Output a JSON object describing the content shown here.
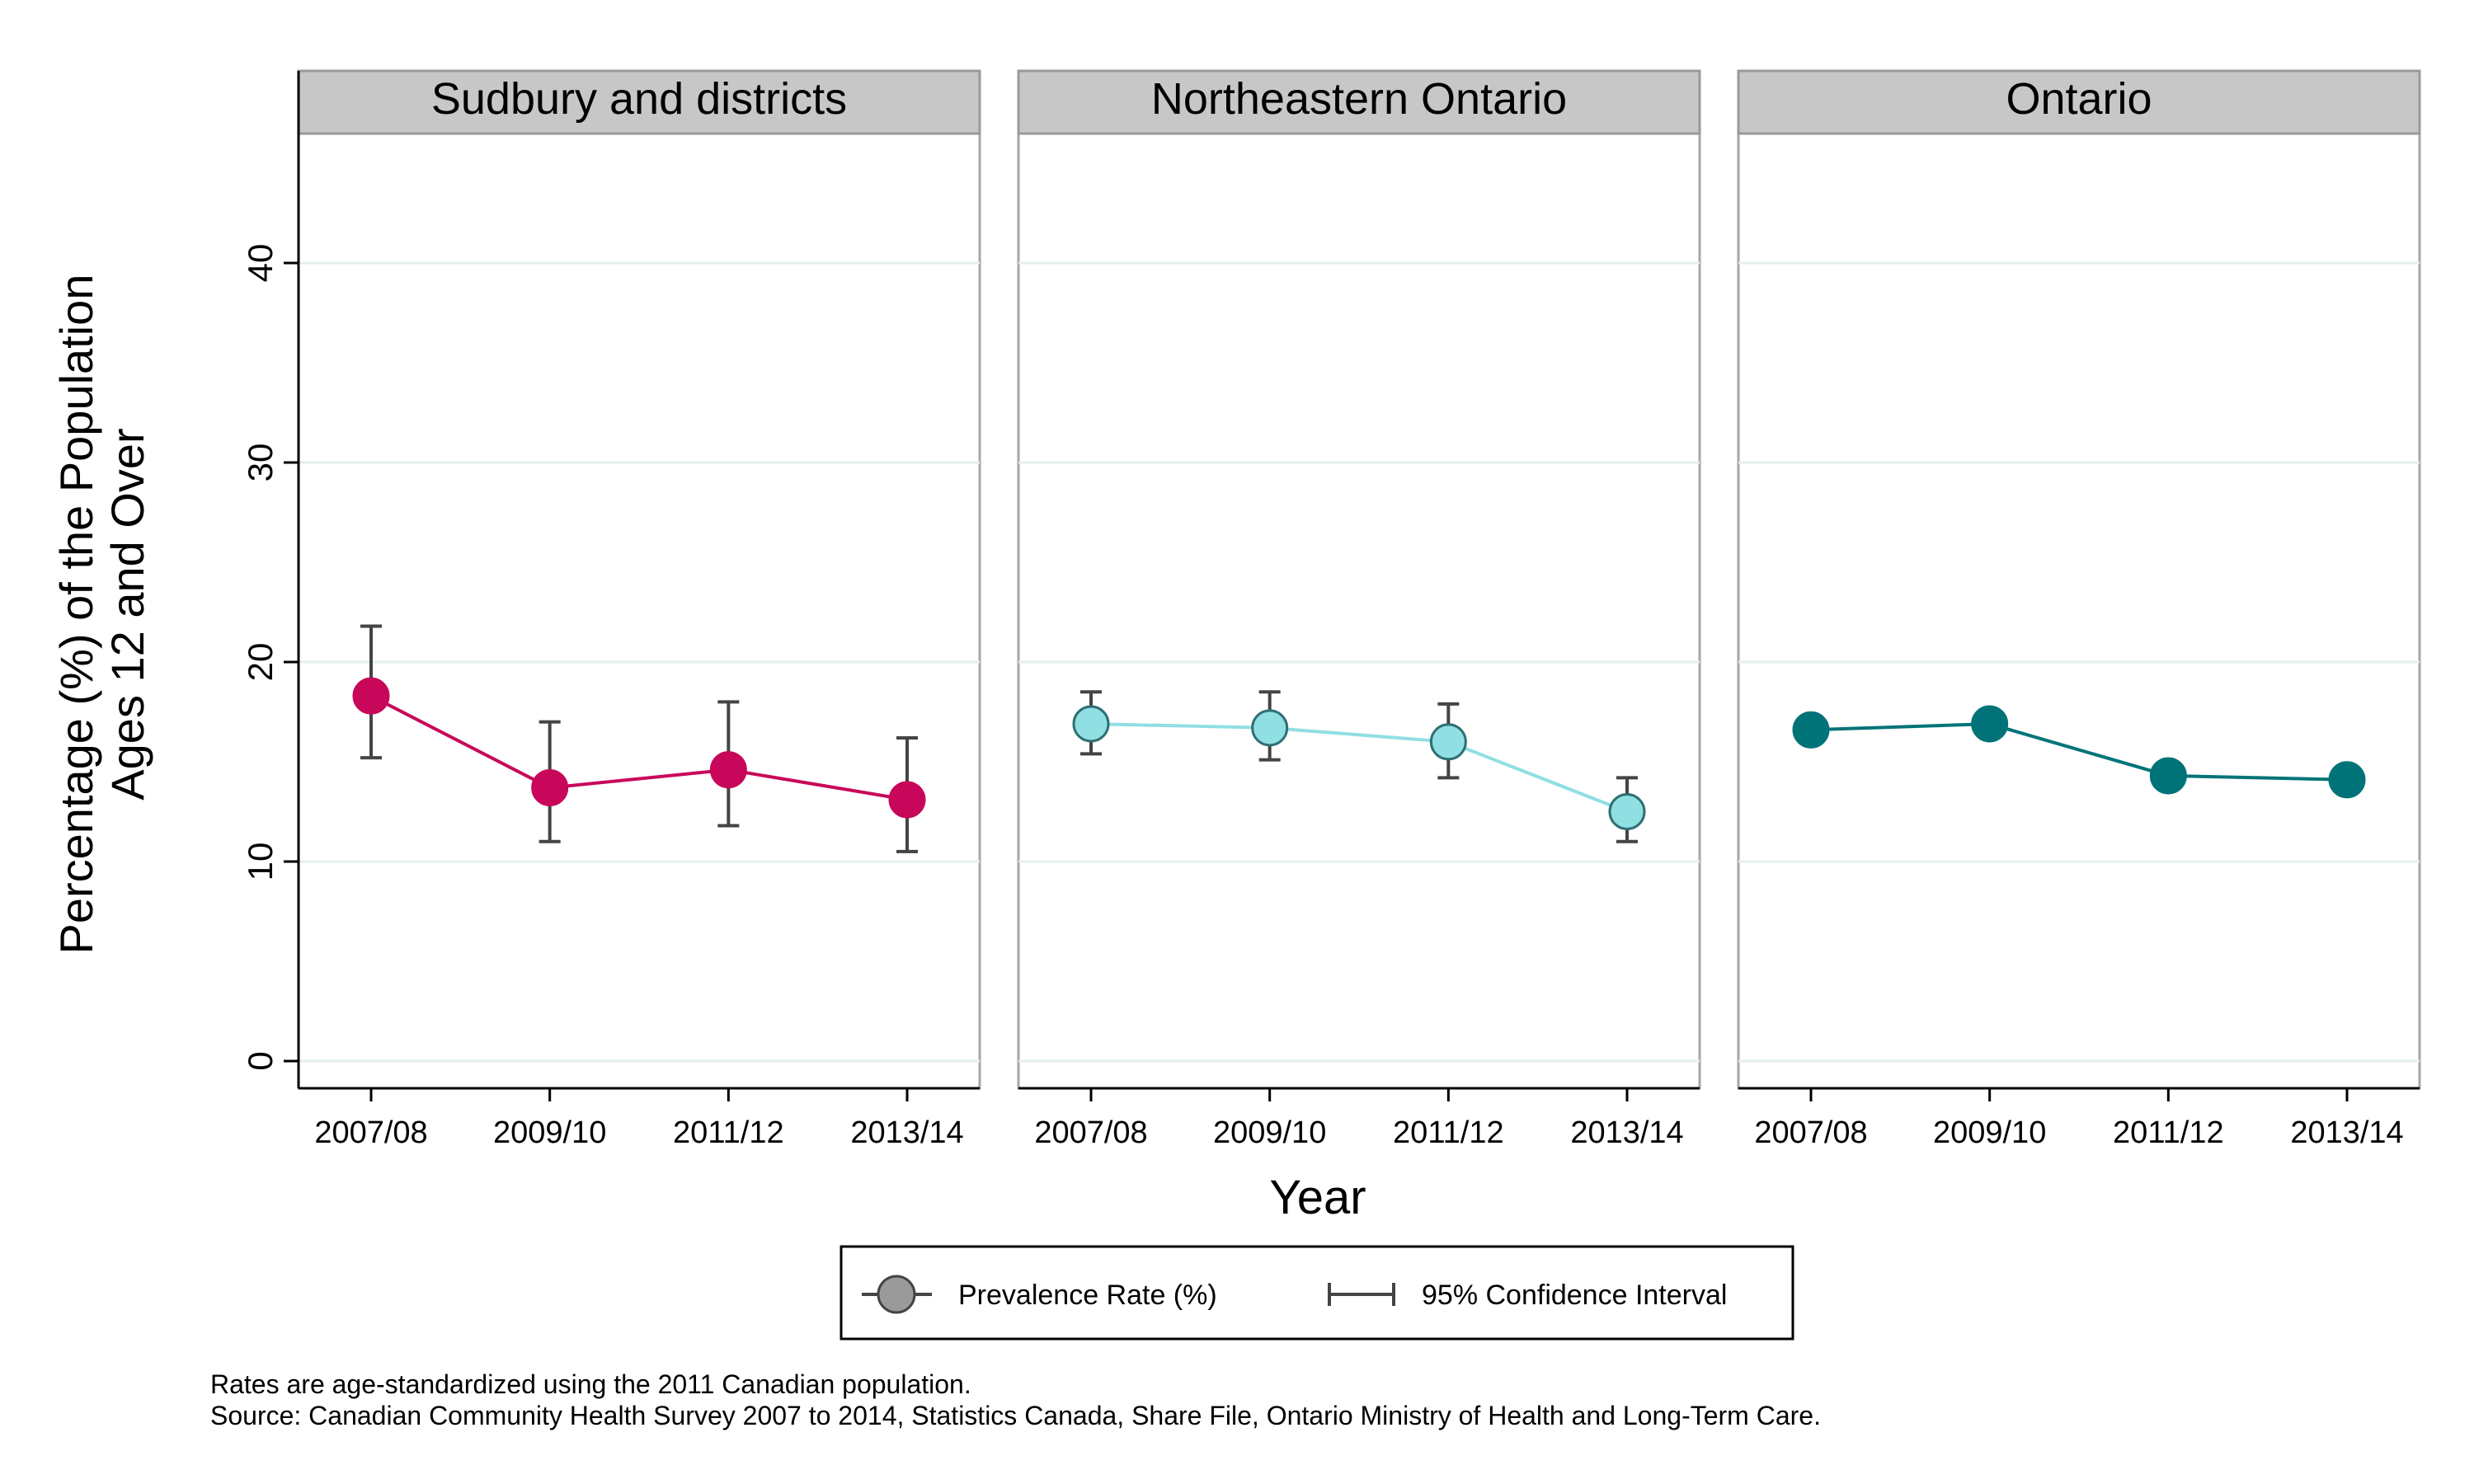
{
  "chart_data": {
    "type": "line",
    "panels": [
      {
        "title": "Sudbury and districts",
        "color": "#c8075a",
        "categories": [
          "2007/08",
          "2009/10",
          "2011/12",
          "2013/14"
        ],
        "values": [
          18.3,
          13.7,
          14.6,
          13.1
        ],
        "ci_lower": [
          15.2,
          11.0,
          11.8,
          10.5
        ],
        "ci_upper": [
          21.8,
          17.0,
          18.0,
          16.2
        ]
      },
      {
        "title": "Northeastern Ontario",
        "color": "#8fdfe3",
        "categories": [
          "2007/08",
          "2009/10",
          "2011/12",
          "2013/14"
        ],
        "values": [
          16.9,
          16.7,
          16.0,
          12.5
        ],
        "ci_lower": [
          15.4,
          15.1,
          14.2,
          11.0
        ],
        "ci_upper": [
          18.5,
          18.5,
          17.9,
          14.2
        ]
      },
      {
        "title": "Ontario",
        "color": "#007378",
        "categories": [
          "2007/08",
          "2009/10",
          "2011/12",
          "2013/14"
        ],
        "values": [
          16.6,
          16.9,
          14.3,
          14.1
        ],
        "ci_lower": null,
        "ci_upper": null
      }
    ],
    "ylabel_line1": "Percentage (%) of the Population",
    "ylabel_line2": "Ages 12 and Over",
    "xlabel": "Year",
    "ylim": [
      0,
      46
    ],
    "yticks": [
      0,
      10,
      20,
      30,
      40
    ],
    "grid": true,
    "legend": {
      "position": "bottom-center",
      "items": [
        {
          "label": "Prevalence Rate (%)",
          "symbol": "marker",
          "color": "#9a9a9a"
        },
        {
          "label": "95% Confidence Interval",
          "symbol": "interval",
          "color": "#444444"
        }
      ]
    },
    "notes": [
      "Rates are age-standardized using the 2011 Canadian population.",
      "Source: Canadian Community Health Survey 2007 to 2014, Statistics Canada, Share File, Ontario Ministry of Health and Long-Term Care."
    ]
  }
}
